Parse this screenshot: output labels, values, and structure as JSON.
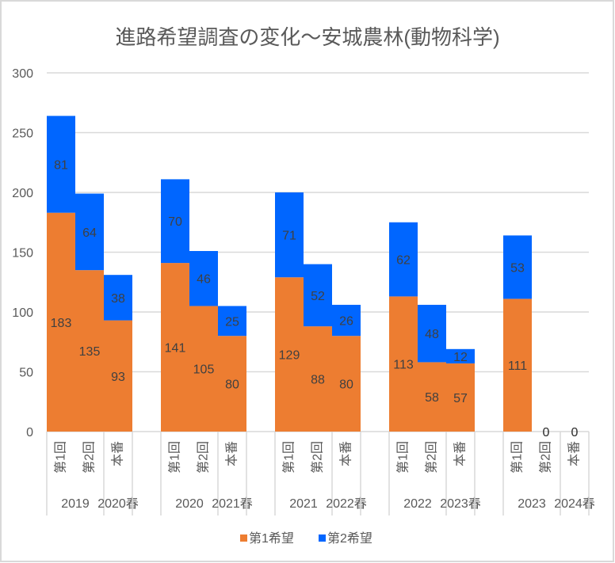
{
  "chart_data": {
    "type": "bar",
    "stacked": true,
    "title": "進路希望調査の変化～安城農林(動物科学)",
    "xlabel": "",
    "ylabel": "",
    "ylim": [
      0,
      300
    ],
    "ytick_step": 50,
    "yticks": [
      0,
      50,
      100,
      150,
      200,
      250,
      300
    ],
    "grid": true,
    "legend": "bottom",
    "data_labels": true,
    "categories": [
      "第1回",
      "第2回",
      "本番",
      "",
      "第1回",
      "第2回",
      "本番",
      "",
      "第1回",
      "第2回",
      "本番",
      "",
      "第1回",
      "第2回",
      "本番",
      "",
      "第1回",
      "第2回",
      "本番"
    ],
    "category_groups": [
      {
        "label": "2019",
        "span": 2
      },
      {
        "label": "2020春",
        "span": 1
      },
      {
        "label": "",
        "span": 1
      },
      {
        "label": "2020",
        "span": 2
      },
      {
        "label": "2021春",
        "span": 1
      },
      {
        "label": "",
        "span": 1
      },
      {
        "label": "2021",
        "span": 2
      },
      {
        "label": "2022春",
        "span": 1
      },
      {
        "label": "",
        "span": 1
      },
      {
        "label": "2022",
        "span": 2
      },
      {
        "label": "2023春",
        "span": 1
      },
      {
        "label": "",
        "span": 1
      },
      {
        "label": "2023",
        "span": 2
      },
      {
        "label": "2024春",
        "span": 1
      }
    ],
    "series": [
      {
        "name": "第1希望",
        "color": "#ED7D31",
        "values": [
          183,
          135,
          93,
          null,
          141,
          105,
          80,
          null,
          129,
          88,
          80,
          null,
          113,
          58,
          57,
          null,
          111,
          0,
          0
        ]
      },
      {
        "name": "第2希望",
        "color": "#0066FF",
        "values": [
          81,
          64,
          38,
          null,
          70,
          46,
          25,
          null,
          71,
          52,
          26,
          null,
          62,
          48,
          12,
          null,
          53,
          0,
          0
        ]
      }
    ]
  }
}
